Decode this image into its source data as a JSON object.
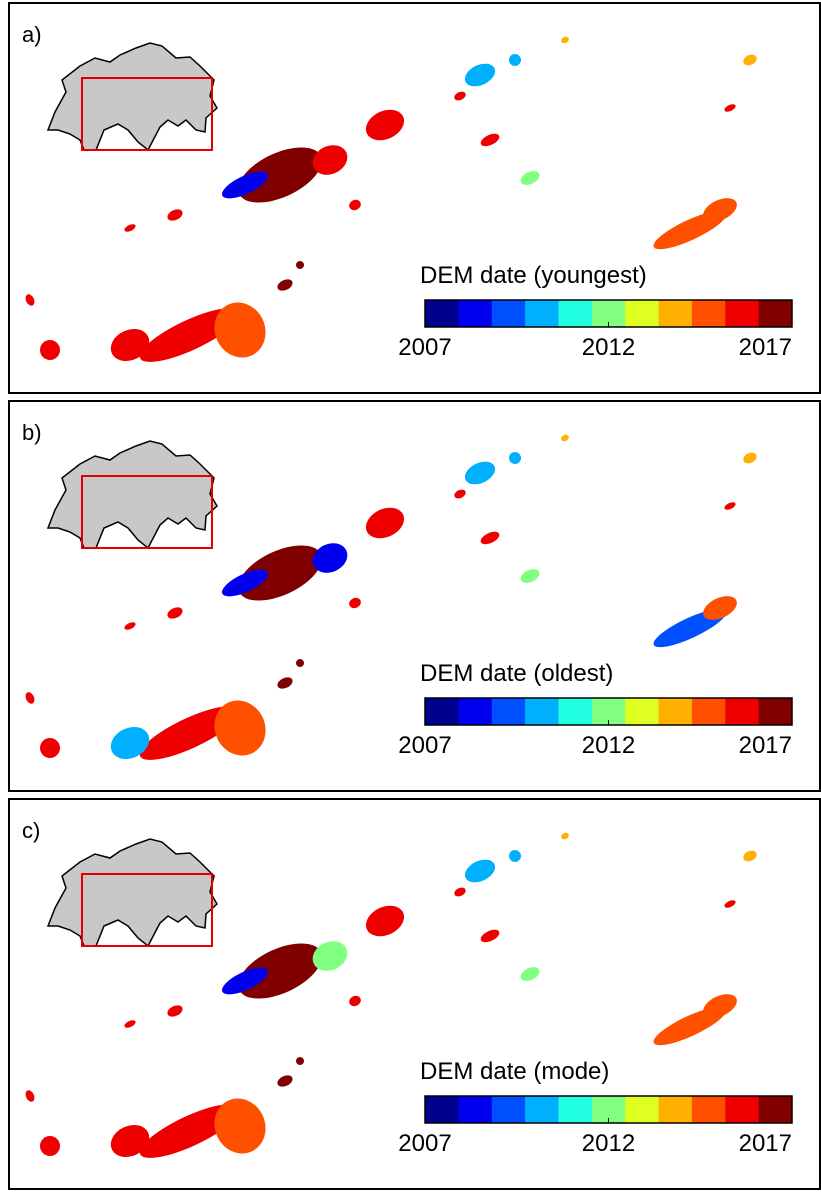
{
  "panels": [
    {
      "label": "a)",
      "legend_title": "DEM date (youngest)"
    },
    {
      "label": "b)",
      "legend_title": "DEM date (oldest)"
    },
    {
      "label": "c)",
      "legend_title": "DEM date (mode)"
    }
  ],
  "colorbar": {
    "range": [
      2007,
      2017
    ],
    "ticks": [
      2007,
      2012,
      2017
    ],
    "colors": [
      "#00008f",
      "#0000ef",
      "#0050ff",
      "#00b0ff",
      "#20ffdf",
      "#80ff80",
      "#dfff20",
      "#ffb000",
      "#ff5000",
      "#ef0000",
      "#800000"
    ]
  }
}
